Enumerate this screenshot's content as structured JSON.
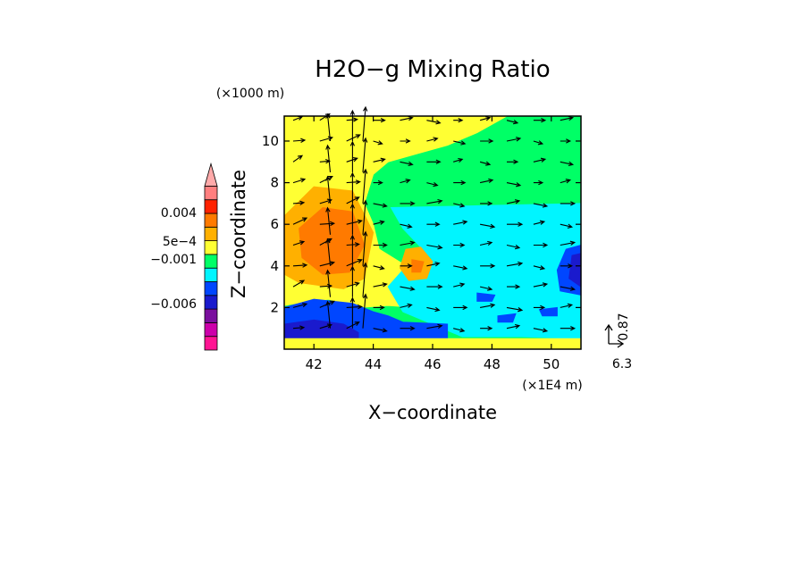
{
  "chart_data": {
    "type": "heatmap",
    "title": "H2O−g Mixing Ratio",
    "xlabel": "X−coordinate",
    "ylabel": "Z−coordinate",
    "x_unit": "(×1E4 m)",
    "y_unit": "(×1000 m)",
    "xlim": [
      41.0,
      51.0
    ],
    "ylim": [
      0.0,
      11.2
    ],
    "x_ticks": [
      42,
      44,
      46,
      48,
      50
    ],
    "y_ticks": [
      2,
      4,
      6,
      8,
      10
    ],
    "colorbar": {
      "labels": [
        {
          "text": "0.004",
          "value": 0.004
        },
        {
          "text": "5e−4",
          "value": 0.0005
        },
        {
          "text": "−0.001",
          "value": -0.001
        },
        {
          "text": "−0.006",
          "value": -0.006
        }
      ],
      "bins": [
        {
          "color": "#ff1493"
        },
        {
          "color": "#cc00aa"
        },
        {
          "color": "#7a0f9e"
        },
        {
          "color": "#1a1acd"
        },
        {
          "color": "#0046ff"
        },
        {
          "color": "#00f5ff"
        },
        {
          "color": "#00ff66"
        },
        {
          "color": "#ffff33"
        },
        {
          "color": "#ffb000"
        },
        {
          "color": "#ff7a00"
        },
        {
          "color": "#ff2200"
        },
        {
          "color": "#ff7f7f"
        }
      ],
      "top_triangle_color": "#ffaaaa"
    },
    "regions": [
      {
        "level": "green",
        "color": "#00ff66",
        "points": [
          [
            41.0,
            0.5
          ],
          [
            51.0,
            0.5
          ],
          [
            51.0,
            11.2
          ],
          [
            41.0,
            11.2
          ]
        ]
      },
      {
        "level": "yellow",
        "color": "#ffff33",
        "points": [
          [
            41.0,
            11.2
          ],
          [
            48.5,
            11.2
          ],
          [
            47.5,
            10.4
          ],
          [
            46.5,
            9.8
          ],
          [
            45.5,
            9.4
          ],
          [
            44.5,
            9.0
          ],
          [
            44.0,
            8.4
          ],
          [
            43.7,
            7.0
          ],
          [
            44.0,
            6.0
          ],
          [
            44.2,
            4.8
          ],
          [
            45.0,
            4.1
          ],
          [
            46.0,
            4.3
          ],
          [
            46.5,
            3.6
          ],
          [
            47.0,
            2.8
          ],
          [
            47.5,
            2.3
          ],
          [
            46.8,
            1.8
          ],
          [
            45.5,
            2.0
          ],
          [
            44.5,
            2.1
          ],
          [
            43.5,
            2.0
          ],
          [
            42.5,
            2.4
          ],
          [
            41.8,
            2.3
          ],
          [
            41.0,
            2.1
          ]
        ]
      },
      {
        "level": "cyan",
        "color": "#00f5ff",
        "points": [
          [
            44.6,
            6.8
          ],
          [
            51.0,
            7.0
          ],
          [
            51.0,
            0.5
          ],
          [
            49.0,
            0.6
          ],
          [
            47.0,
            0.6
          ],
          [
            46.0,
            1.2
          ],
          [
            45.0,
            1.8
          ],
          [
            44.5,
            3.0
          ],
          [
            45.0,
            3.8
          ],
          [
            46.0,
            4.3
          ],
          [
            45.0,
            5.8
          ]
        ]
      },
      {
        "level": "orange-light",
        "color": "#ffb000",
        "points": [
          [
            41.0,
            6.4
          ],
          [
            42.0,
            7.8
          ],
          [
            43.3,
            7.6
          ],
          [
            44.0,
            5.6
          ],
          [
            43.7,
            3.4
          ],
          [
            43.0,
            2.9
          ],
          [
            41.5,
            3.2
          ],
          [
            41.0,
            3.6
          ]
        ]
      },
      {
        "level": "orange-light",
        "color": "#ffb000",
        "points": [
          [
            45.1,
            4.8
          ],
          [
            45.6,
            4.9
          ],
          [
            46.0,
            4.2
          ],
          [
            45.8,
            3.4
          ],
          [
            45.2,
            3.3
          ],
          [
            44.9,
            3.9
          ]
        ]
      },
      {
        "level": "orange",
        "color": "#ff7a00",
        "points": [
          [
            41.5,
            5.8
          ],
          [
            42.3,
            6.8
          ],
          [
            43.3,
            6.6
          ],
          [
            43.7,
            5.0
          ],
          [
            43.2,
            3.7
          ],
          [
            42.3,
            3.6
          ],
          [
            41.6,
            4.4
          ]
        ]
      },
      {
        "level": "orange",
        "color": "#ff7a00",
        "points": [
          [
            45.3,
            4.3
          ],
          [
            45.7,
            4.2
          ],
          [
            45.6,
            3.7
          ],
          [
            45.3,
            3.7
          ]
        ]
      },
      {
        "level": "blue",
        "color": "#0046ff",
        "points": [
          [
            41.0,
            2.0
          ],
          [
            42.0,
            2.4
          ],
          [
            43.3,
            2.2
          ],
          [
            44.0,
            1.8
          ],
          [
            44.5,
            1.6
          ],
          [
            45.0,
            1.3
          ],
          [
            46.5,
            1.2
          ],
          [
            46.5,
            0.5
          ],
          [
            41.0,
            0.5
          ]
        ]
      },
      {
        "level": "blue",
        "color": "#0046ff",
        "points": [
          [
            50.5,
            4.8
          ],
          [
            51.0,
            5.0
          ],
          [
            51.0,
            2.6
          ],
          [
            50.3,
            2.8
          ],
          [
            50.2,
            3.8
          ]
        ]
      },
      {
        "level": "blue",
        "color": "#0046ff",
        "points": [
          [
            47.5,
            2.7
          ],
          [
            48.1,
            2.6
          ],
          [
            48.0,
            2.3
          ],
          [
            47.5,
            2.3
          ]
        ]
      },
      {
        "level": "blue",
        "color": "#0046ff",
        "points": [
          [
            49.6,
            1.9
          ],
          [
            50.2,
            2.0
          ],
          [
            50.2,
            1.6
          ],
          [
            49.7,
            1.6
          ]
        ]
      },
      {
        "level": "blue",
        "color": "#0046ff",
        "points": [
          [
            48.2,
            1.6
          ],
          [
            48.8,
            1.7
          ],
          [
            48.7,
            1.3
          ],
          [
            48.2,
            1.3
          ]
        ]
      },
      {
        "level": "dark-blue",
        "color": "#1a1acd",
        "points": [
          [
            41.0,
            1.2
          ],
          [
            42.0,
            1.4
          ],
          [
            43.0,
            1.2
          ],
          [
            43.5,
            0.8
          ],
          [
            43.5,
            0.5
          ],
          [
            41.0,
            0.5
          ]
        ]
      },
      {
        "level": "dark-blue",
        "color": "#1a1acd",
        "points": [
          [
            50.7,
            4.5
          ],
          [
            51.0,
            4.6
          ],
          [
            51.0,
            3.0
          ],
          [
            50.6,
            3.4
          ]
        ]
      },
      {
        "level": "yellow",
        "color": "#ffff33",
        "points": [
          [
            41.0,
            0.5
          ],
          [
            51.0,
            0.5
          ],
          [
            51.0,
            0.2
          ],
          [
            41.0,
            0.2
          ]
        ]
      }
    ],
    "vectors": {
      "reference_vector": {
        "x_label": "6.3",
        "z_label": "0.87"
      },
      "x_positions": [
        41.3,
        42.2,
        43.1,
        44.0,
        44.9,
        45.8,
        46.7,
        47.6,
        48.5,
        49.4,
        50.3
      ],
      "z_positions": [
        1.0,
        2.0,
        3.0,
        4.0,
        5.0,
        6.0,
        7.0,
        8.0,
        9.0,
        10.0,
        11.0
      ],
      "updraft_x": [
        42.6,
        43.3,
        43.6
      ],
      "updraft_z_range": [
        1.0,
        11.0
      ]
    }
  }
}
